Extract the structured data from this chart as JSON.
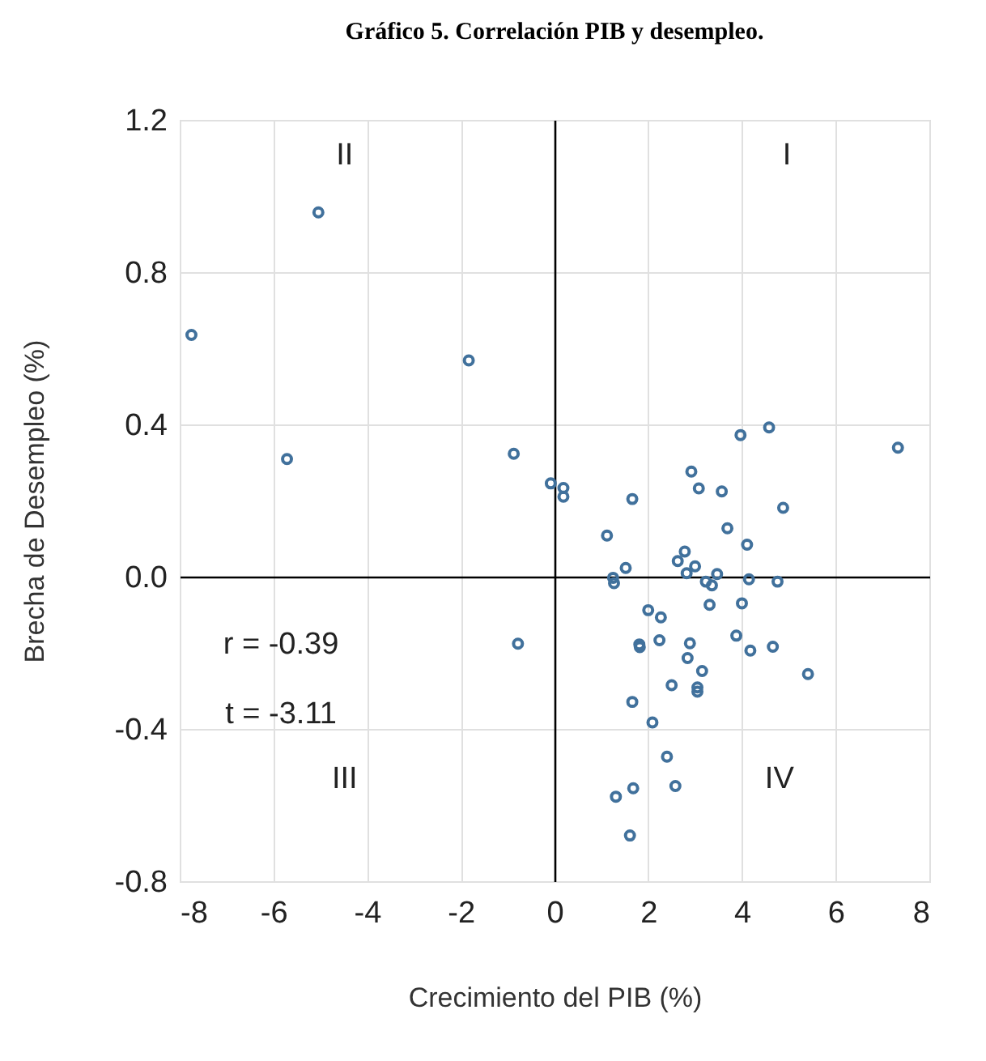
{
  "chart_data": {
    "type": "scatter",
    "title": "Gráfico 5. Correlación PIB y desempleo.",
    "xlabel": "Crecimiento del PIB (%)",
    "ylabel": "Brecha de Desempleo (%)",
    "x": [
      -5.04,
      -7.75,
      -1.83,
      -5.71,
      -0.87,
      -0.08,
      0.19,
      0.19,
      -0.78,
      4.58,
      3.97,
      7.33,
      2.92,
      3.08,
      3.57,
      1.66,
      4.88,
      3.69,
      1.12,
      4.11,
      2.78,
      2.63,
      3.0,
      1.52,
      3.47,
      2.82,
      1.25,
      1.27,
      3.23,
      3.36,
      4.15,
      4.76,
      4.0,
      3.31,
      2.0,
      2.27,
      3.88,
      2.24,
      1.81,
      1.82,
      2.89,
      4.18,
      4.66,
      2.84,
      3.15,
      5.41,
      2.5,
      3.05,
      3.05,
      1.66,
      2.09,
      2.4,
      2.58,
      1.68,
      1.31,
      1.61
    ],
    "values": [
      0.957,
      0.635,
      0.568,
      0.309,
      0.323,
      0.245,
      0.233,
      0.21,
      -0.176,
      0.392,
      0.372,
      0.339,
      0.276,
      0.232,
      0.224,
      0.204,
      0.181,
      0.127,
      0.108,
      0.084,
      0.066,
      0.041,
      0.027,
      0.023,
      0.007,
      0.009,
      -0.003,
      -0.017,
      -0.013,
      -0.023,
      -0.007,
      -0.013,
      -0.07,
      -0.074,
      -0.088,
      -0.107,
      -0.155,
      -0.167,
      -0.178,
      -0.185,
      -0.175,
      -0.194,
      -0.184,
      -0.214,
      -0.248,
      -0.256,
      -0.285,
      -0.291,
      -0.302,
      -0.329,
      -0.383,
      -0.473,
      -0.55,
      -0.556,
      -0.578,
      -0.68
    ],
    "color": "#41719c",
    "marker": "circle",
    "xlim": [
      -8,
      8
    ],
    "xticks": [
      -8,
      -6,
      -4,
      -2,
      0,
      2,
      4,
      6,
      8
    ],
    "ylim": [
      -0.8,
      1.2
    ],
    "yticks": [
      {
        "value": -0.8,
        "label": "-0.8"
      },
      {
        "value": -0.4,
        "label": "-0.4"
      },
      {
        "value": 0,
        "label": "0.0"
      },
      {
        "value": 0.4,
        "label": "0.4"
      },
      {
        "value": 0.8,
        "label": "0.8"
      },
      {
        "value": 1.2,
        "label": "1.2"
      }
    ],
    "grid": true,
    "annotations": [
      "I",
      "II",
      "III",
      "IV",
      "r = -0.39",
      "t = -3.11"
    ]
  }
}
